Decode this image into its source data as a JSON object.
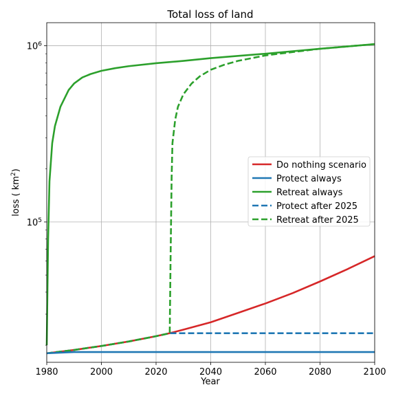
{
  "chart_data": {
    "type": "line",
    "title": "Total loss of land",
    "xlabel": "Year",
    "ylabel": "loss ( km²)",
    "ylabel_parts": {
      "main": "loss ( km",
      "sup": "2",
      "tail": ")"
    },
    "xlim": [
      1980,
      2100
    ],
    "ylim": [
      16000,
      1350000
    ],
    "yscale": "log",
    "grid": true,
    "legend_position": "center-right",
    "x_ticks": [
      1980,
      2000,
      2020,
      2040,
      2060,
      2080,
      2100
    ],
    "y_ticks": [
      {
        "value": 100000,
        "base": "10",
        "exp": "5"
      },
      {
        "value": 1000000,
        "base": "10",
        "exp": "6"
      }
    ],
    "series": [
      {
        "name": "Do nothing scenario",
        "color": "#d62728",
        "style": "solid",
        "x": [
          1980,
          1990,
          2000,
          2010,
          2020,
          2025,
          2030,
          2040,
          2050,
          2060,
          2070,
          2080,
          2090,
          2100
        ],
        "y": [
          18000,
          18800,
          19800,
          21000,
          22500,
          23400,
          24500,
          27000,
          30500,
          34500,
          39500,
          46000,
          54000,
          64000
        ]
      },
      {
        "name": "Protect always",
        "color": "#1f77b4",
        "style": "solid",
        "x": [
          1980,
          1990,
          2000,
          2020,
          2040,
          2060,
          2080,
          2100
        ],
        "y": [
          18000,
          18300,
          18300,
          18300,
          18300,
          18300,
          18300,
          18300
        ]
      },
      {
        "name": "Retreat always",
        "color": "#2ca02c",
        "style": "solid",
        "x": [
          1980,
          1980.5,
          1981,
          1982,
          1983,
          1985,
          1988,
          1990,
          1993,
          1996,
          2000,
          2005,
          2010,
          2020,
          2030,
          2040,
          2050,
          2060,
          2070,
          2080,
          2090,
          2100
        ],
        "y": [
          20000,
          80000,
          170000,
          280000,
          350000,
          450000,
          560000,
          610000,
          660000,
          690000,
          720000,
          745000,
          765000,
          795000,
          820000,
          850000,
          875000,
          900000,
          930000,
          960000,
          990000,
          1020000
        ]
      },
      {
        "name": "Protect after 2025",
        "color": "#1f77b4",
        "style": "dashed",
        "x": [
          1980,
          1990,
          2000,
          2010,
          2020,
          2025,
          2040,
          2060,
          2080,
          2100
        ],
        "y": [
          18000,
          18800,
          19800,
          21000,
          22500,
          23400,
          23400,
          23400,
          23400,
          23400
        ]
      },
      {
        "name": "Retreat after 2025",
        "color": "#2ca02c",
        "style": "dashed",
        "x": [
          1980,
          1990,
          2000,
          2010,
          2020,
          2025,
          2025.3,
          2025.7,
          2026,
          2027,
          2028,
          2030,
          2033,
          2036,
          2040,
          2045,
          2050,
          2060,
          2070,
          2080,
          2090,
          2100
        ],
        "y": [
          18000,
          18800,
          19800,
          21000,
          22500,
          23400,
          60000,
          180000,
          280000,
          380000,
          450000,
          530000,
          610000,
          670000,
          730000,
          780000,
          820000,
          880000,
          920000,
          960000,
          990000,
          1020000
        ]
      }
    ]
  }
}
